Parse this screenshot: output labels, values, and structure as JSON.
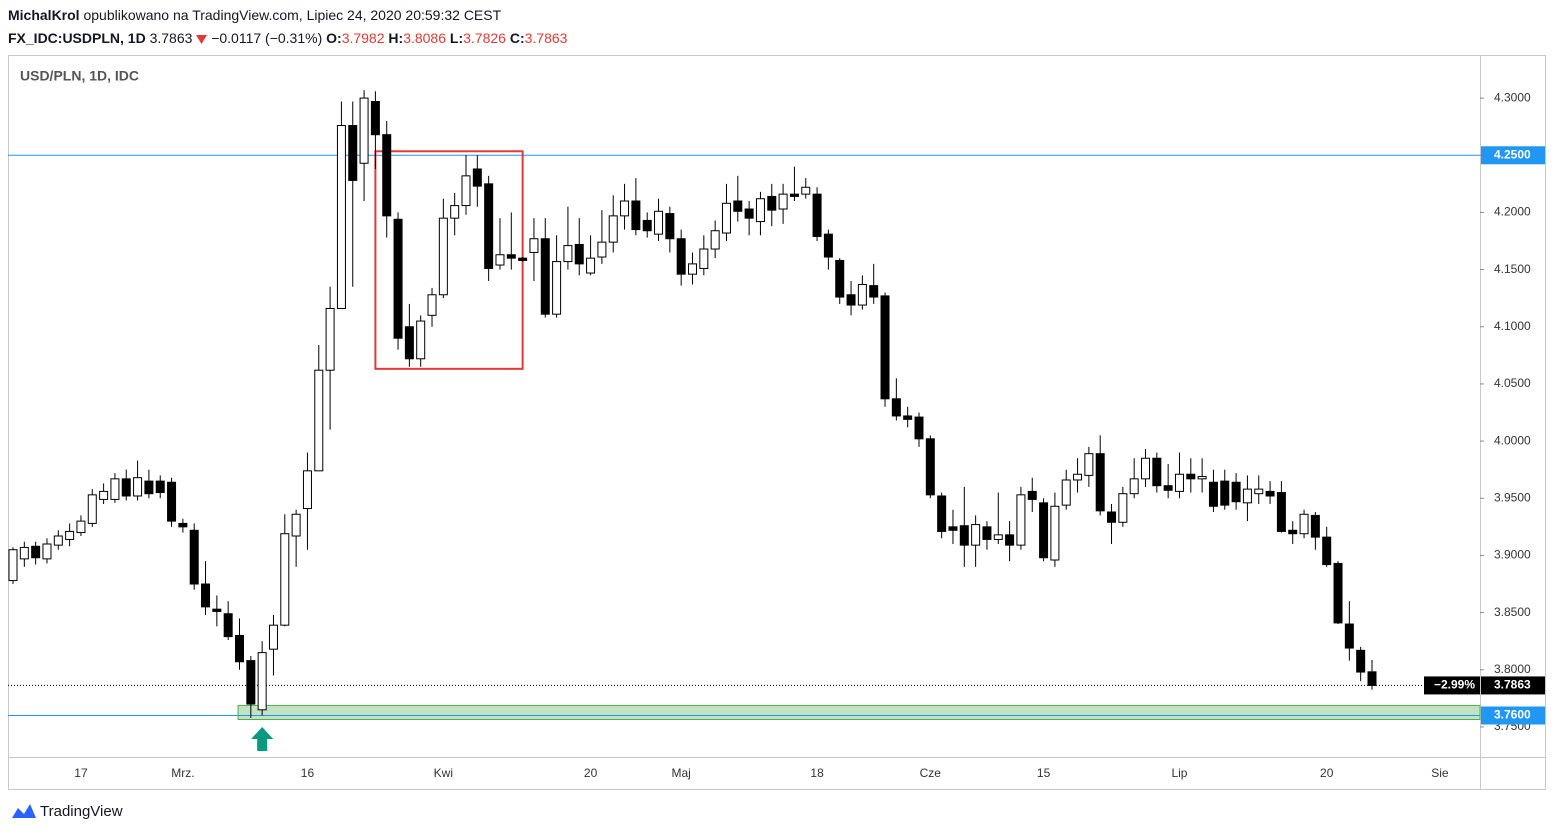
{
  "header": {
    "author": "MichalKrol",
    "published": "opublikowano na TradingView.com, Lipiec 24, 2020 20:59:32 CEST",
    "symbol": "FX_IDC:USDPLN, 1D",
    "last": "3.7863",
    "change": "−0.0117 (−0.31%)",
    "ohlc": [
      {
        "label": "O:",
        "value": "3.7982"
      },
      {
        "label": "H:",
        "value": "3.8086"
      },
      {
        "label": "L:",
        "value": "3.7826"
      },
      {
        "label": "C:",
        "value": "3.7863"
      }
    ]
  },
  "footer": "TradingView",
  "chart_data": {
    "type": "candlestick",
    "title": "USD/PLN, 1D, IDC",
    "categories": [
      null,
      null,
      null,
      null,
      null,
      null,
      "17",
      null,
      null,
      null,
      null,
      null,
      null,
      null,
      null,
      "Mrz.",
      null,
      null,
      null,
      null,
      null,
      null,
      null,
      null,
      null,
      null,
      "16",
      null,
      null,
      null,
      null,
      null,
      null,
      null,
      null,
      null,
      null,
      null,
      "Kwi",
      null,
      null,
      null,
      null,
      null,
      null,
      null,
      null,
      null,
      null,
      null,
      null,
      "20",
      null,
      null,
      null,
      null,
      null,
      null,
      null,
      "Maj",
      null,
      null,
      null,
      null,
      null,
      null,
      null,
      null,
      null,
      null,
      null,
      "18",
      null,
      null,
      null,
      null,
      null,
      null,
      null,
      null,
      null,
      "Cze",
      null,
      null,
      null,
      null,
      null,
      null,
      null,
      null,
      null,
      "15",
      null,
      null,
      null,
      null,
      null,
      null,
      null,
      null,
      null,
      null,
      null,
      "Lip",
      null,
      null,
      null,
      null,
      null,
      null,
      null,
      null,
      null,
      null,
      null,
      null,
      "20",
      null,
      null,
      null,
      null,
      null,
      null,
      null,
      null,
      null,
      "Sie"
    ],
    "open": [
      3.878,
      3.897,
      3.908,
      3.897,
      3.909,
      3.914,
      3.92,
      3.928,
      3.949,
      3.949,
      3.967,
      3.952,
      3.965,
      3.965,
      3.964,
      3.928,
      3.922,
      3.875,
      3.853,
      3.849,
      3.83,
      3.808,
      3.765,
      3.818,
      3.839,
      3.917,
      3.941,
      3.974,
      4.062,
      4.116,
      4.276,
      4.243,
      4.297,
      4.268,
      4.194,
      4.1,
      4.072,
      4.11,
      4.128,
      4.195,
      4.206,
      4.238,
      4.225,
      4.154,
      4.163,
      4.16,
      4.165,
      4.177,
      4.111,
      4.157,
      4.172,
      4.147,
      4.161,
      4.174,
      4.197,
      4.21,
      4.193,
      4.181,
      4.199,
      4.177,
      4.146,
      4.151,
      4.168,
      4.182,
      4.21,
      4.203,
      4.192,
      4.214,
      4.203,
      4.216,
      4.216,
      4.216,
      4.181,
      4.158,
      4.128,
      4.119,
      4.136,
      4.127,
      4.037,
      4.022,
      4.021,
      4.002,
      3.952,
      3.925,
      3.926,
      3.909,
      3.925,
      3.914,
      3.918,
      3.909,
      3.956,
      3.946,
      3.896,
      3.944,
      3.966,
      3.97,
      3.989,
      3.938,
      3.929,
      3.954,
      3.967,
      3.985,
      3.961,
      3.956,
      3.971,
      3.967,
      3.964,
      3.965,
      3.964,
      3.946,
      3.954,
      3.956,
      3.955,
      3.922,
      3.919,
      3.935,
      3.916,
      3.893,
      3.84,
      3.817,
      3.7982,
      null,
      null,
      null,
      null,
      null,
      null
    ],
    "high": [
      3.907,
      3.912,
      3.912,
      3.915,
      3.922,
      3.928,
      3.935,
      3.958,
      3.963,
      3.972,
      3.975,
      3.983,
      3.975,
      3.97,
      3.968,
      3.932,
      3.928,
      3.895,
      3.865,
      3.86,
      3.845,
      3.812,
      3.825,
      3.848,
      3.936,
      3.94,
      3.99,
      4.084,
      4.135,
      4.297,
      4.297,
      4.307,
      4.306,
      4.28,
      4.2,
      4.12,
      4.11,
      4.134,
      4.212,
      4.217,
      4.25,
      4.25,
      4.232,
      4.195,
      4.2,
      4.161,
      4.195,
      4.195,
      4.18,
      4.205,
      4.195,
      4.18,
      4.202,
      4.215,
      4.225,
      4.23,
      4.2,
      4.212,
      4.205,
      4.185,
      4.165,
      4.18,
      4.193,
      4.225,
      4.232,
      4.21,
      4.218,
      4.225,
      4.225,
      4.24,
      4.23,
      4.222,
      4.185,
      4.16,
      4.14,
      4.145,
      4.155,
      4.13,
      4.055,
      4.03,
      4.025,
      4.005,
      3.955,
      3.94,
      3.96,
      3.935,
      3.93,
      3.955,
      3.93,
      3.96,
      3.968,
      3.95,
      3.955,
      3.975,
      3.985,
      3.995,
      4.005,
      3.945,
      3.96,
      3.985,
      3.993,
      3.99,
      3.98,
      3.99,
      3.985,
      3.985,
      3.975,
      3.975,
      3.972,
      3.97,
      3.97,
      3.965,
      3.965,
      3.93,
      3.94,
      3.938,
      3.925,
      3.895,
      3.86,
      3.82,
      3.8086,
      null,
      null,
      null,
      null,
      null,
      null
    ],
    "low": [
      3.875,
      3.89,
      3.892,
      3.893,
      3.905,
      3.908,
      3.917,
      3.925,
      3.945,
      3.946,
      3.948,
      3.948,
      3.95,
      3.95,
      3.925,
      3.92,
      3.87,
      3.848,
      3.838,
      3.826,
      3.8,
      3.758,
      3.76,
      3.795,
      3.838,
      3.89,
      3.905,
      3.974,
      4.01,
      4.116,
      4.135,
      4.21,
      4.238,
      4.178,
      4.08,
      4.065,
      4.065,
      4.1,
      4.125,
      4.18,
      4.198,
      4.205,
      4.14,
      4.15,
      4.15,
      4.157,
      4.14,
      4.108,
      4.108,
      4.15,
      4.145,
      4.145,
      4.155,
      4.165,
      4.185,
      4.18,
      4.178,
      4.175,
      4.165,
      4.136,
      4.137,
      4.145,
      4.16,
      4.175,
      4.192,
      4.18,
      4.18,
      4.188,
      4.19,
      4.21,
      4.212,
      4.175,
      4.15,
      4.12,
      4.11,
      4.115,
      4.12,
      4.03,
      4.018,
      4.012,
      3.995,
      3.95,
      3.915,
      3.91,
      3.89,
      3.89,
      3.905,
      3.91,
      3.895,
      3.905,
      3.938,
      3.895,
      3.89,
      3.94,
      3.955,
      3.96,
      3.935,
      3.91,
      3.925,
      3.95,
      3.96,
      3.955,
      3.95,
      3.95,
      3.955,
      3.955,
      3.938,
      3.94,
      3.94,
      3.93,
      3.945,
      3.945,
      3.92,
      3.91,
      3.915,
      3.905,
      3.89,
      3.84,
      3.808,
      3.79,
      3.7826,
      null,
      null,
      null,
      null,
      null,
      null
    ],
    "close": [
      3.905,
      3.907,
      3.898,
      3.91,
      3.917,
      3.921,
      3.93,
      3.953,
      3.956,
      3.967,
      3.952,
      3.968,
      3.954,
      3.955,
      3.93,
      3.925,
      3.875,
      3.855,
      3.851,
      3.829,
      3.807,
      3.77,
      3.815,
      3.839,
      3.919,
      3.936,
      3.974,
      4.062,
      4.116,
      4.276,
      4.228,
      4.3,
      4.268,
      4.197,
      4.09,
      4.072,
      4.105,
      4.128,
      4.195,
      4.206,
      4.232,
      4.223,
      4.151,
      4.163,
      4.16,
      4.158,
      4.177,
      4.111,
      4.157,
      4.171,
      4.155,
      4.16,
      4.174,
      4.197,
      4.21,
      4.185,
      4.184,
      4.201,
      4.177,
      4.146,
      4.155,
      4.168,
      4.184,
      4.208,
      4.201,
      4.195,
      4.212,
      4.202,
      4.216,
      4.214,
      4.222,
      4.179,
      4.161,
      4.126,
      4.119,
      4.137,
      4.126,
      4.037,
      4.022,
      4.019,
      4.002,
      3.953,
      3.921,
      3.922,
      3.909,
      3.927,
      3.914,
      3.918,
      3.909,
      3.953,
      3.949,
      3.898,
      3.943,
      3.966,
      3.971,
      3.989,
      3.939,
      3.929,
      3.954,
      3.967,
      3.985,
      3.961,
      3.957,
      3.971,
      3.967,
      3.969,
      3.943,
      3.944,
      3.947,
      3.958,
      3.958,
      3.952,
      3.921,
      3.919,
      3.936,
      3.916,
      3.892,
      3.841,
      3.819,
      3.798,
      3.7863,
      null,
      null,
      null,
      null,
      null,
      null
    ],
    "up_color": "#ffffff",
    "down_color": "#000000",
    "wick_color": "#000000",
    "ylim": [
      3.7237,
      4.3377
    ],
    "yticks": [
      {
        "value": 3.75,
        "label": "3.7500"
      },
      {
        "value": 3.8,
        "label": "3.8000"
      },
      {
        "value": 3.85,
        "label": "3.8500"
      },
      {
        "value": 3.9,
        "label": "3.9000"
      },
      {
        "value": 3.95,
        "label": "3.9500"
      },
      {
        "value": 4.0,
        "label": "4.0000"
      },
      {
        "value": 4.05,
        "label": "4.0500"
      },
      {
        "value": 4.1,
        "label": "4.1000"
      },
      {
        "value": 4.15,
        "label": "4.1500"
      },
      {
        "value": 4.2,
        "label": "4.2000"
      },
      {
        "value": 4.25,
        "label": "4.2500"
      },
      {
        "value": 4.3,
        "label": "4.3000"
      }
    ],
    "grid": false,
    "hlines": [
      {
        "value": 4.25,
        "label": "4.2500",
        "color": "#2196f3"
      },
      {
        "value": 3.76,
        "label": "3.7600",
        "color": "#2196f3"
      }
    ],
    "zone": {
      "from": 3.7565,
      "to": 3.7688,
      "start": 20,
      "color": "#4caf50"
    },
    "box": {
      "start": 32,
      "end": 45,
      "from": 4.0632,
      "to": 4.2535,
      "color": "#e53935"
    },
    "arrow": {
      "at": 22,
      "color": "#089981"
    },
    "last_price": {
      "value": 3.7863,
      "label": "3.7863",
      "change": "−2.99%"
    }
  }
}
